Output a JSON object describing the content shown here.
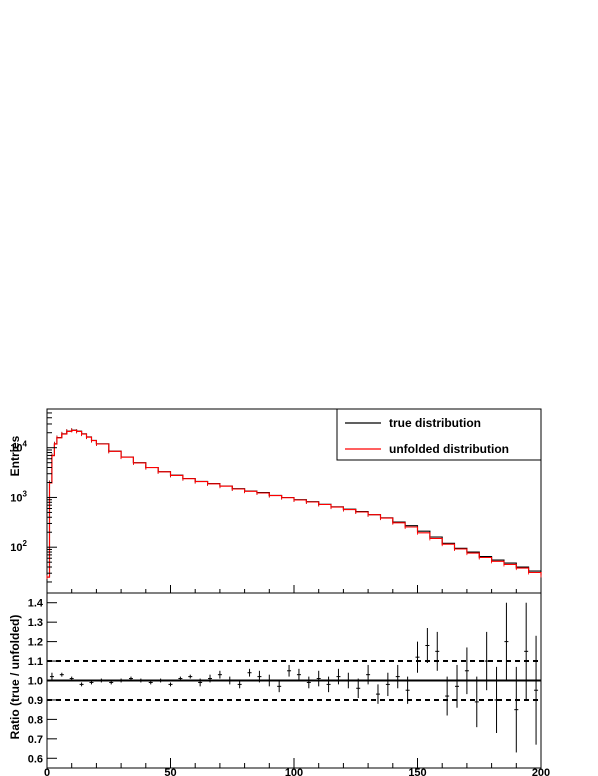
{
  "chart_data": [
    {
      "type": "line",
      "panel": "main",
      "ylabel": "Entries",
      "xlabel": "",
      "yscale": "log",
      "xlim": [
        0,
        200
      ],
      "ylim": [
        12,
        60000
      ],
      "ytick_labels": [
        {
          "value": 100,
          "base": "10",
          "exp": "2"
        },
        {
          "value": 1000,
          "base": "10",
          "exp": "3"
        },
        {
          "value": 10000,
          "base": "10",
          "exp": "4"
        }
      ],
      "legend_position": "top-right",
      "series": [
        {
          "name": "true distribution",
          "color": "#000000",
          "x": [
            0,
            1,
            2,
            3,
            4,
            6,
            8,
            10,
            12,
            14,
            16,
            18,
            20,
            25,
            30,
            35,
            40,
            45,
            50,
            55,
            60,
            65,
            70,
            75,
            80,
            85,
            90,
            95,
            100,
            105,
            110,
            115,
            120,
            125,
            130,
            135,
            140,
            145,
            150,
            155,
            160,
            165,
            170,
            175,
            180,
            185,
            190,
            195,
            200
          ],
          "y": [
            25,
            2000,
            7000,
            12000,
            16000,
            19000,
            21500,
            22500,
            21500,
            19000,
            16500,
            14000,
            12000,
            8500,
            6500,
            5000,
            4000,
            3300,
            2800,
            2400,
            2100,
            1900,
            1700,
            1500,
            1350,
            1250,
            1100,
            1000,
            900,
            820,
            730,
            650,
            580,
            520,
            450,
            390,
            320,
            270,
            210,
            160,
            120,
            95,
            80,
            65,
            55,
            48,
            40,
            33,
            28
          ]
        },
        {
          "name": "unfolded distribution",
          "color": "#ff0000",
          "x": [
            0,
            1,
            2,
            3,
            4,
            6,
            8,
            10,
            12,
            14,
            16,
            18,
            20,
            25,
            30,
            35,
            40,
            45,
            50,
            55,
            60,
            65,
            70,
            75,
            80,
            85,
            90,
            95,
            100,
            105,
            110,
            115,
            120,
            125,
            130,
            135,
            140,
            145,
            150,
            155,
            160,
            165,
            170,
            175,
            180,
            185,
            190,
            195,
            200
          ],
          "y": [
            25,
            1950,
            6900,
            11800,
            15800,
            18800,
            21300,
            22300,
            21300,
            18800,
            16300,
            13900,
            11900,
            8450,
            6450,
            4950,
            3980,
            3280,
            2780,
            2380,
            2080,
            1880,
            1680,
            1480,
            1330,
            1230,
            1090,
            990,
            890,
            810,
            720,
            640,
            570,
            510,
            450,
            385,
            310,
            255,
            195,
            150,
            115,
            92,
            76,
            62,
            52,
            45,
            38,
            31,
            27
          ]
        }
      ]
    },
    {
      "type": "scatter",
      "panel": "ratio",
      "ylabel": "Ratio (true / unfolded)",
      "xlabel": "",
      "xlim": [
        0,
        200
      ],
      "ylim": [
        0.55,
        1.45
      ],
      "xticks": [
        0,
        50,
        100,
        150,
        200
      ],
      "yticks": [
        0.6,
        0.7,
        0.8,
        0.9,
        1.0,
        1.1,
        1.2,
        1.3,
        1.4
      ],
      "ytick_labels": [
        "0.6",
        "0.7",
        "0.8",
        "0.9",
        "1.0",
        "1.1",
        "1.2",
        "1.3",
        "1.4"
      ],
      "reference_lines": [
        1.0,
        0.9,
        1.1
      ],
      "series": [
        {
          "color": "#000000",
          "x": [
            2,
            6,
            10,
            14,
            18,
            22,
            26,
            30,
            34,
            38,
            42,
            46,
            50,
            54,
            58,
            62,
            66,
            70,
            74,
            78,
            82,
            86,
            90,
            94,
            98,
            102,
            106,
            110,
            114,
            118,
            122,
            126,
            130,
            134,
            138,
            142,
            146,
            150,
            154,
            158,
            162,
            166,
            170,
            174,
            178,
            182,
            186,
            190,
            194,
            198
          ],
          "y": [
            1.02,
            1.03,
            1.01,
            0.98,
            0.99,
            1.0,
            0.99,
            1.0,
            1.01,
            1.0,
            0.99,
            1.0,
            0.98,
            1.01,
            1.02,
            0.99,
            1.01,
            1.03,
            1.0,
            0.98,
            1.04,
            1.02,
            1.0,
            0.97,
            1.05,
            1.03,
            0.99,
            1.01,
            0.98,
            1.02,
            1.0,
            0.96,
            1.03,
            0.93,
            0.98,
            1.02,
            0.95,
            1.12,
            1.18,
            1.15,
            0.92,
            0.97,
            1.05,
            0.89,
            1.1,
            0.9,
            1.2,
            0.85,
            1.15,
            0.95
          ],
          "err": [
            0.02,
            0.01,
            0.01,
            0.01,
            0.01,
            0.01,
            0.01,
            0.01,
            0.01,
            0.01,
            0.01,
            0.01,
            0.01,
            0.01,
            0.01,
            0.02,
            0.02,
            0.02,
            0.02,
            0.02,
            0.02,
            0.03,
            0.03,
            0.03,
            0.03,
            0.03,
            0.03,
            0.04,
            0.04,
            0.04,
            0.04,
            0.05,
            0.05,
            0.05,
            0.06,
            0.06,
            0.07,
            0.08,
            0.09,
            0.1,
            0.1,
            0.11,
            0.12,
            0.13,
            0.15,
            0.17,
            0.2,
            0.22,
            0.25,
            0.28
          ]
        }
      ]
    }
  ],
  "legend": {
    "items": [
      {
        "label": "true distribution",
        "color": "#000000"
      },
      {
        "label": "unfolded distribution",
        "color": "#ff0000"
      }
    ]
  },
  "axes": {
    "top_ylabel": "Entries",
    "bottom_ylabel": "Ratio (true / unfolded)",
    "xtick_labels": [
      "0",
      "50",
      "100",
      "150",
      "200"
    ]
  }
}
